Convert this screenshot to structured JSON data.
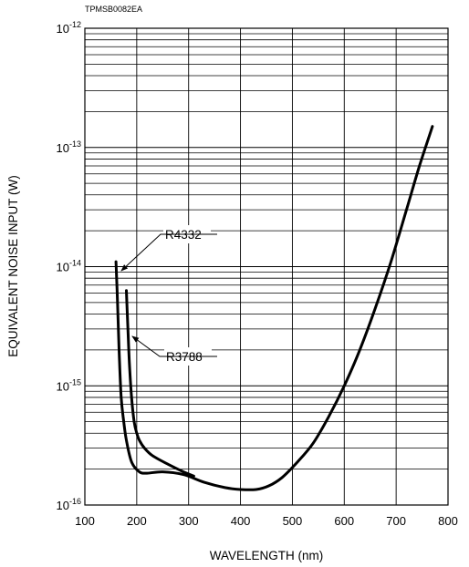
{
  "chart_data": {
    "type": "line",
    "title": "",
    "figure_code": "TPMSB0082EA",
    "xlabel": "WAVELENGTH (nm)",
    "ylabel": "EQUIVALENT NOISE INPUT (W)",
    "xlim": [
      100,
      800
    ],
    "ylim": [
      1e-16,
      1e-12
    ],
    "yscale": "log",
    "grid": true,
    "legend": "none",
    "x_ticks": [
      "100",
      "200",
      "300",
      "400",
      "500",
      "600",
      "700",
      "800"
    ],
    "y_ticks": [
      {
        "base": "10",
        "exp": "-12"
      },
      {
        "base": "10",
        "exp": "-13"
      },
      {
        "base": "10",
        "exp": "-14"
      },
      {
        "base": "10",
        "exp": "-15"
      },
      {
        "base": "10",
        "exp": "-16"
      }
    ],
    "series": [
      {
        "name": "R4332",
        "x": [
          160,
          163,
          166,
          170,
          175,
          180,
          190,
          205,
          220,
          250,
          290,
          330,
          370,
          400,
          430,
          455,
          480,
          510,
          540,
          570,
          600,
          630,
          660,
          690,
          720,
          745,
          770
        ],
        "y": [
          1.1e-14,
          5e-15,
          2e-15,
          8e-16,
          5e-16,
          3.5e-16,
          2.3e-16,
          1.9e-16,
          1.85e-16,
          1.9e-16,
          1.8e-16,
          1.55e-16,
          1.4e-16,
          1.35e-16,
          1.35e-16,
          1.45e-16,
          1.7e-16,
          2.3e-16,
          3.3e-16,
          5.5e-16,
          1e-15,
          2e-15,
          4.5e-15,
          1.1e-14,
          3e-14,
          7e-14,
          1.5e-13
        ]
      },
      {
        "name": "R3788",
        "x": [
          180,
          183,
          186,
          190,
          195,
          200,
          205,
          215,
          230,
          260,
          290,
          310
        ],
        "y": [
          6.3e-15,
          3e-15,
          1.5e-15,
          8e-16,
          5e-16,
          4e-16,
          3.5e-16,
          3e-16,
          2.6e-16,
          2.2e-16,
          1.9e-16,
          1.75e-16
        ]
      }
    ],
    "annotations": [
      {
        "text": "R4332",
        "target_series": "R4332"
      },
      {
        "text": "R3788",
        "target_series": "R3788"
      }
    ]
  }
}
